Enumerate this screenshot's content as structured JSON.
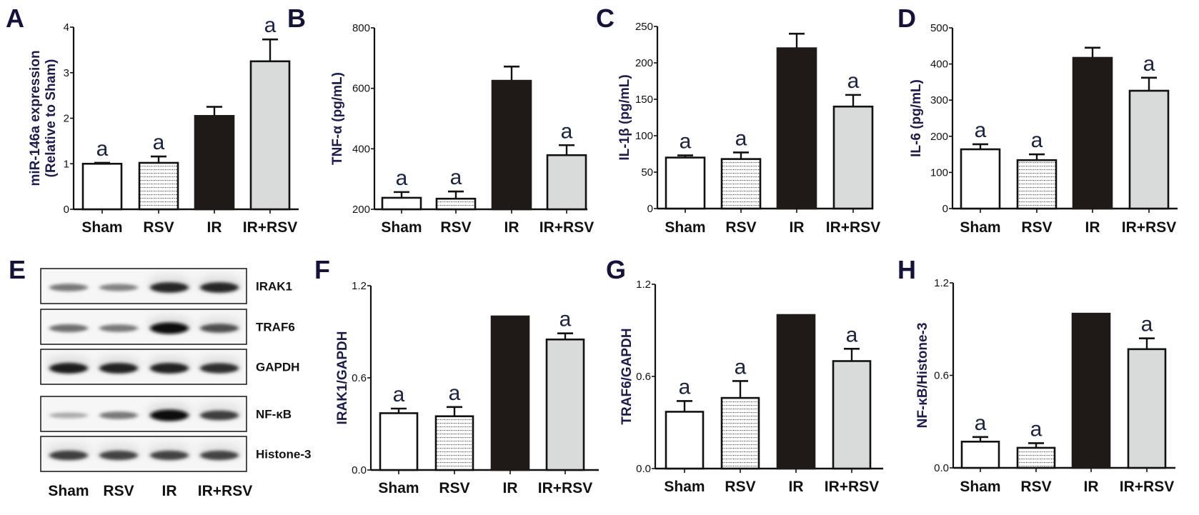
{
  "figure": {
    "groups": [
      "Sham",
      "RSV",
      "IR",
      "IR+RSV"
    ],
    "fills": {
      "Sham": "#ffffff",
      "RSV": "dots",
      "IR": "#1f1917",
      "IR+RSV": "#d9dada"
    },
    "label_color": "#1c1c4a"
  },
  "blot": {
    "letter": "E",
    "rows": [
      {
        "label": "IRAK1",
        "intensities": [
          0.45,
          0.4,
          0.85,
          0.85
        ]
      },
      {
        "label": "TRAF6",
        "intensities": [
          0.5,
          0.45,
          1.0,
          0.65
        ]
      },
      {
        "label": "GAPDH",
        "intensities": [
          0.9,
          0.88,
          0.88,
          0.82
        ]
      },
      {
        "label": "NF-κB",
        "intensities": [
          0.2,
          0.45,
          1.0,
          0.75
        ]
      },
      {
        "label": "Histone-3",
        "intensities": [
          0.75,
          0.72,
          0.72,
          0.72
        ]
      }
    ],
    "lane_labels": [
      "Sham",
      "RSV",
      "IR",
      "IR+RSV"
    ]
  },
  "chart_data": [
    {
      "panel": "A",
      "type": "bar",
      "title": "",
      "xlabel": "",
      "ylabel": "miR-146a expression\n(Relative to Sham)",
      "categories": [
        "Sham",
        "RSV",
        "IR",
        "IR+RSV"
      ],
      "values": [
        1.0,
        1.02,
        2.05,
        3.25
      ],
      "errors": [
        0.02,
        0.14,
        0.2,
        0.48
      ],
      "ylim": [
        0,
        4
      ],
      "yticks": [
        "0",
        "1",
        "2",
        "3",
        "4"
      ],
      "ytick_values": [
        0,
        1,
        2,
        3,
        4
      ],
      "annotations": [
        "a",
        "a",
        "",
        "a"
      ],
      "grid": false
    },
    {
      "panel": "B",
      "type": "bar",
      "title": "",
      "xlabel": "",
      "ylabel": "TNF-α (pg/mL)",
      "categories": [
        "Sham",
        "RSV",
        "IR",
        "IR+RSV"
      ],
      "values": [
        238,
        235,
        625,
        379
      ],
      "errors": [
        19,
        24,
        47,
        33
      ],
      "ylim": [
        200,
        800
      ],
      "yticks": [
        "200",
        "400",
        "600",
        "800"
      ],
      "ytick_values": [
        200,
        400,
        600,
        800
      ],
      "annotations": [
        "a",
        "a",
        "",
        "a"
      ],
      "grid": false
    },
    {
      "panel": "C",
      "type": "bar",
      "title": "",
      "xlabel": "",
      "ylabel": "IL-1β (pg/mL)",
      "categories": [
        "Sham",
        "RSV",
        "IR",
        "IR+RSV"
      ],
      "values": [
        70,
        68,
        220,
        140
      ],
      "errors": [
        3,
        9,
        20,
        16
      ],
      "ylim": [
        0,
        250
      ],
      "yticks": [
        "0",
        "50",
        "100",
        "150",
        "200",
        "250"
      ],
      "ytick_values": [
        0,
        50,
        100,
        150,
        200,
        250
      ],
      "annotations": [
        "a",
        "a",
        "",
        "a"
      ],
      "grid": false
    },
    {
      "panel": "D",
      "type": "bar",
      "title": "",
      "xlabel": "",
      "ylabel": "IL-6 (pg/mL)",
      "categories": [
        "Sham",
        "RSV",
        "IR",
        "IR+RSV"
      ],
      "values": [
        164,
        134,
        417,
        326
      ],
      "errors": [
        14,
        16,
        28,
        36
      ],
      "ylim": [
        0,
        500
      ],
      "yticks": [
        "0",
        "100",
        "200",
        "300",
        "400",
        "500"
      ],
      "ytick_values": [
        0,
        100,
        200,
        300,
        400,
        500
      ],
      "annotations": [
        "a",
        "a",
        "",
        "a"
      ],
      "grid": false
    },
    {
      "panel": "F",
      "type": "bar",
      "title": "",
      "xlabel": "",
      "ylabel": "IRAK1/GAPDH",
      "categories": [
        "Sham",
        "RSV",
        "IR",
        "IR+RSV"
      ],
      "values": [
        0.37,
        0.35,
        1.0,
        0.85
      ],
      "errors": [
        0.03,
        0.06,
        0.0,
        0.04
      ],
      "ylim": [
        0,
        1.2
      ],
      "yticks": [
        "0.0",
        "0.6",
        "1.2"
      ],
      "ytick_values": [
        0,
        0.6,
        1.2
      ],
      "annotations": [
        "a",
        "a",
        "",
        "a"
      ],
      "grid": false
    },
    {
      "panel": "G",
      "type": "bar",
      "title": "",
      "xlabel": "",
      "ylabel": "TRAF6/GAPDH",
      "categories": [
        "Sham",
        "RSV",
        "IR",
        "IR+RSV"
      ],
      "values": [
        0.37,
        0.46,
        1.0,
        0.7
      ],
      "errors": [
        0.07,
        0.11,
        0.0,
        0.08
      ],
      "ylim": [
        0,
        1.2
      ],
      "yticks": [
        "0.0",
        "0.6",
        "1.2"
      ],
      "ytick_values": [
        0,
        0.6,
        1.2
      ],
      "annotations": [
        "a",
        "a",
        "",
        "a"
      ],
      "grid": false
    },
    {
      "panel": "H",
      "type": "bar",
      "title": "",
      "xlabel": "",
      "ylabel": "NF-κB/Histone-3",
      "categories": [
        "Sham",
        "RSV",
        "IR",
        "IR+RSV"
      ],
      "values": [
        0.17,
        0.13,
        1.0,
        0.77
      ],
      "errors": [
        0.03,
        0.03,
        0.0,
        0.07
      ],
      "ylim": [
        0,
        1.2
      ],
      "yticks": [
        "0.0",
        "0.6",
        "1.2"
      ],
      "ytick_values": [
        0,
        0.6,
        1.2
      ],
      "annotations": [
        "a",
        "a",
        "",
        "a"
      ],
      "grid": false
    }
  ]
}
